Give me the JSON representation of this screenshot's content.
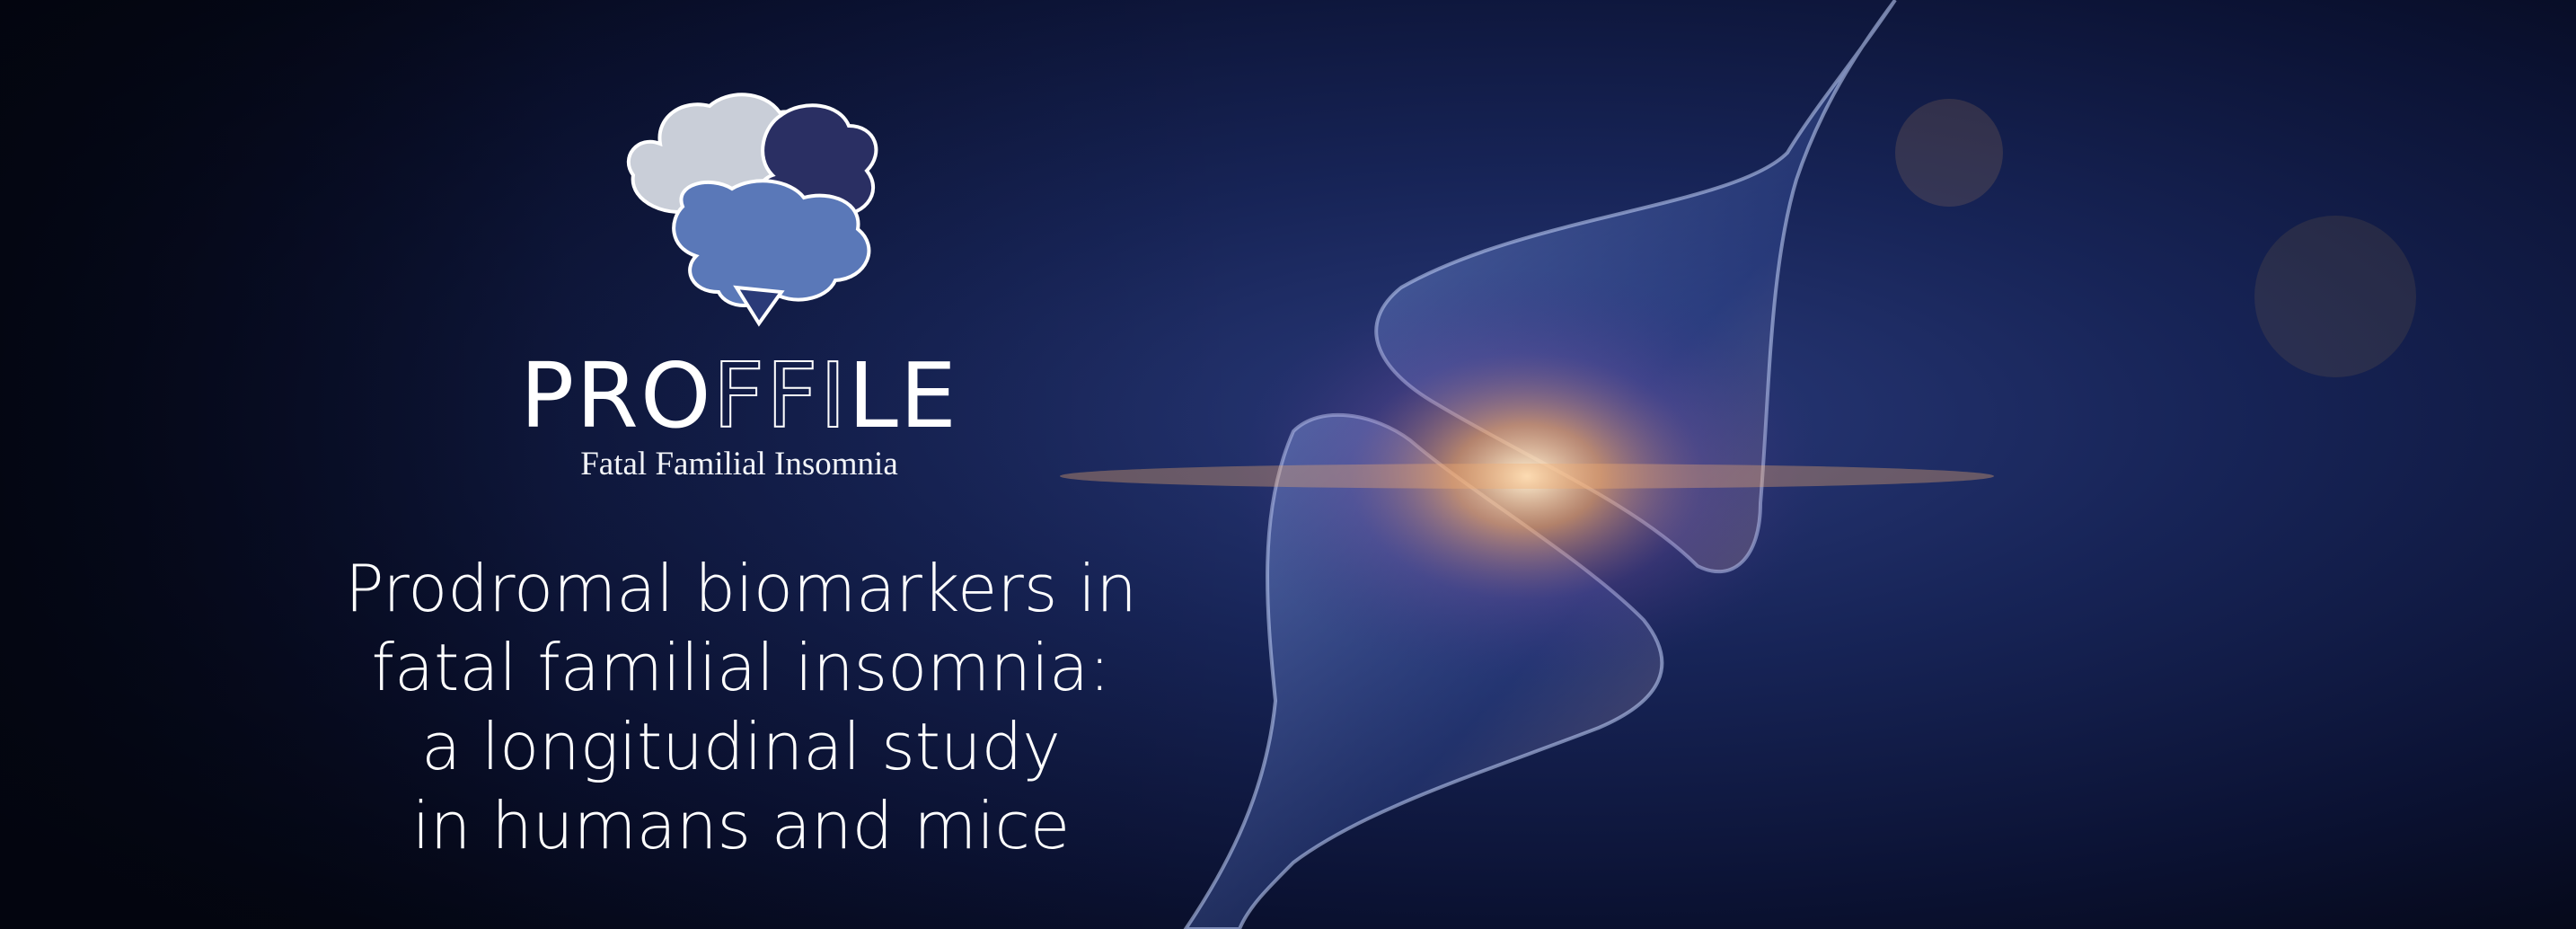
{
  "logo": {
    "wordmark": [
      "PRO",
      "FFI",
      "LE"
    ],
    "tagline": "Fatal Familial Insomnia"
  },
  "headline": [
    "Prodromal biomarkers in",
    "fatal familial insomnia:",
    "a longitudinal study",
    "in humans and mice"
  ]
}
